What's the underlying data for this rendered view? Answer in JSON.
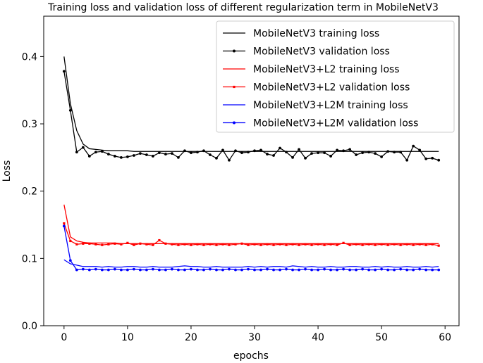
{
  "chart_data": {
    "type": "line",
    "title": "Training loss and validation loss of different regularization term in MobileNetV3",
    "xlabel": "epochs",
    "ylabel": "Loss",
    "xlim": [
      -3.2,
      62.2
    ],
    "ylim": [
      0.0,
      0.46
    ],
    "xticks": [
      0,
      10,
      20,
      30,
      40,
      50,
      60
    ],
    "yticks": [
      0.0,
      0.1,
      0.2,
      0.3,
      0.4
    ],
    "ytick_labels": [
      "0.0",
      "0.1",
      "0.2",
      "0.3",
      "0.4"
    ],
    "legend_position": "top-right",
    "series": [
      {
        "name": "MobileNetV3 training loss",
        "color": "#000000",
        "marker": "none",
        "values": [
          0.4,
          0.33,
          0.29,
          0.27,
          0.263,
          0.262,
          0.261,
          0.26,
          0.26,
          0.26,
          0.26,
          0.259,
          0.259,
          0.259,
          0.259,
          0.259,
          0.259,
          0.259,
          0.259,
          0.259,
          0.259,
          0.259,
          0.259,
          0.259,
          0.259,
          0.259,
          0.259,
          0.259,
          0.259,
          0.259,
          0.259,
          0.259,
          0.259,
          0.259,
          0.259,
          0.259,
          0.259,
          0.259,
          0.259,
          0.259,
          0.259,
          0.259,
          0.259,
          0.259,
          0.259,
          0.259,
          0.259,
          0.259,
          0.259,
          0.259,
          0.259,
          0.259,
          0.259,
          0.259,
          0.259,
          0.259,
          0.259,
          0.259,
          0.259,
          0.259
        ]
      },
      {
        "name": "MobileNetV3 validation loss",
        "color": "#000000",
        "marker": "dot",
        "values": [
          0.378,
          0.32,
          0.258,
          0.265,
          0.252,
          0.258,
          0.259,
          0.255,
          0.252,
          0.25,
          0.251,
          0.253,
          0.256,
          0.254,
          0.252,
          0.257,
          0.255,
          0.256,
          0.25,
          0.26,
          0.257,
          0.258,
          0.26,
          0.254,
          0.249,
          0.261,
          0.246,
          0.26,
          0.257,
          0.258,
          0.26,
          0.261,
          0.255,
          0.253,
          0.264,
          0.258,
          0.25,
          0.262,
          0.249,
          0.256,
          0.257,
          0.257,
          0.252,
          0.261,
          0.26,
          0.262,
          0.254,
          0.257,
          0.258,
          0.256,
          0.251,
          0.259,
          0.258,
          0.258,
          0.246,
          0.267,
          0.261,
          0.248,
          0.249,
          0.246
        ]
      },
      {
        "name": "MobileNetV3+L2 training loss",
        "color": "#ff0000",
        "marker": "none",
        "values": [
          0.18,
          0.132,
          0.126,
          0.124,
          0.123,
          0.123,
          0.123,
          0.123,
          0.123,
          0.122,
          0.122,
          0.122,
          0.122,
          0.122,
          0.122,
          0.122,
          0.122,
          0.122,
          0.122,
          0.122,
          0.122,
          0.122,
          0.122,
          0.122,
          0.122,
          0.122,
          0.122,
          0.122,
          0.122,
          0.122,
          0.122,
          0.122,
          0.122,
          0.122,
          0.122,
          0.122,
          0.122,
          0.122,
          0.122,
          0.122,
          0.122,
          0.122,
          0.122,
          0.122,
          0.122,
          0.122,
          0.122,
          0.122,
          0.122,
          0.122,
          0.122,
          0.122,
          0.122,
          0.122,
          0.122,
          0.122,
          0.122,
          0.122,
          0.122,
          0.122
        ]
      },
      {
        "name": "MobileNetV3+L2 validation loss",
        "color": "#ff0000",
        "marker": "square",
        "values": [
          0.152,
          0.126,
          0.121,
          0.122,
          0.122,
          0.121,
          0.12,
          0.121,
          0.122,
          0.121,
          0.123,
          0.12,
          0.122,
          0.121,
          0.12,
          0.127,
          0.122,
          0.121,
          0.12,
          0.121,
          0.12,
          0.121,
          0.12,
          0.121,
          0.12,
          0.121,
          0.12,
          0.121,
          0.122,
          0.12,
          0.121,
          0.12,
          0.121,
          0.12,
          0.121,
          0.12,
          0.121,
          0.12,
          0.121,
          0.12,
          0.121,
          0.12,
          0.121,
          0.12,
          0.123,
          0.12,
          0.121,
          0.12,
          0.121,
          0.12,
          0.121,
          0.12,
          0.121,
          0.12,
          0.121,
          0.12,
          0.121,
          0.12,
          0.121,
          0.119
        ]
      },
      {
        "name": "MobileNetV3+L2M training loss",
        "color": "#0000ff",
        "marker": "none",
        "values": [
          0.098,
          0.092,
          0.09,
          0.088,
          0.088,
          0.088,
          0.087,
          0.088,
          0.087,
          0.087,
          0.088,
          0.088,
          0.087,
          0.087,
          0.088,
          0.087,
          0.087,
          0.087,
          0.088,
          0.089,
          0.088,
          0.088,
          0.087,
          0.087,
          0.088,
          0.087,
          0.087,
          0.087,
          0.087,
          0.088,
          0.087,
          0.088,
          0.087,
          0.088,
          0.088,
          0.087,
          0.089,
          0.088,
          0.087,
          0.088,
          0.087,
          0.087,
          0.088,
          0.087,
          0.087,
          0.088,
          0.088,
          0.087,
          0.087,
          0.088,
          0.087,
          0.088,
          0.087,
          0.087,
          0.088,
          0.087,
          0.087,
          0.088,
          0.087,
          0.088
        ]
      },
      {
        "name": "MobileNetV3+L2M validation loss",
        "color": "#0000ff",
        "marker": "dot",
        "values": [
          0.148,
          0.097,
          0.083,
          0.084,
          0.083,
          0.084,
          0.083,
          0.083,
          0.084,
          0.083,
          0.083,
          0.084,
          0.083,
          0.083,
          0.084,
          0.083,
          0.083,
          0.084,
          0.083,
          0.083,
          0.084,
          0.083,
          0.083,
          0.084,
          0.083,
          0.083,
          0.084,
          0.083,
          0.083,
          0.084,
          0.083,
          0.083,
          0.084,
          0.083,
          0.083,
          0.084,
          0.083,
          0.083,
          0.084,
          0.083,
          0.083,
          0.084,
          0.083,
          0.083,
          0.084,
          0.083,
          0.083,
          0.084,
          0.083,
          0.083,
          0.084,
          0.083,
          0.083,
          0.084,
          0.083,
          0.083,
          0.084,
          0.083,
          0.083,
          0.083
        ]
      }
    ]
  }
}
